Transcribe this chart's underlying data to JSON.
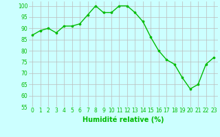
{
  "x": [
    0,
    1,
    2,
    3,
    4,
    5,
    6,
    7,
    8,
    9,
    10,
    11,
    12,
    13,
    14,
    15,
    16,
    17,
    18,
    19,
    20,
    21,
    22,
    23
  ],
  "y": [
    87,
    89,
    90,
    88,
    91,
    91,
    92,
    96,
    100,
    97,
    97,
    100,
    100,
    97,
    93,
    86,
    80,
    76,
    74,
    68,
    63,
    65,
    74,
    77
  ],
  "line_color": "#00bb00",
  "marker": "o",
  "marker_size": 2.2,
  "bg_color": "#ccffff",
  "grid_color": "#bbbbbb",
  "xlabel": "Humidité relative (%)",
  "tick_color": "#00bb00",
  "label_color": "#00bb00",
  "ylim": [
    55,
    102
  ],
  "yticks": [
    55,
    60,
    65,
    70,
    75,
    80,
    85,
    90,
    95,
    100
  ],
  "xlim": [
    -0.5,
    23.5
  ],
  "xticks": [
    0,
    1,
    2,
    3,
    4,
    5,
    6,
    7,
    8,
    9,
    10,
    11,
    12,
    13,
    14,
    15,
    16,
    17,
    18,
    19,
    20,
    21,
    22,
    23
  ],
  "tick_fontsize": 5.5,
  "xlabel_fontsize": 7.0,
  "linewidth": 1.0
}
